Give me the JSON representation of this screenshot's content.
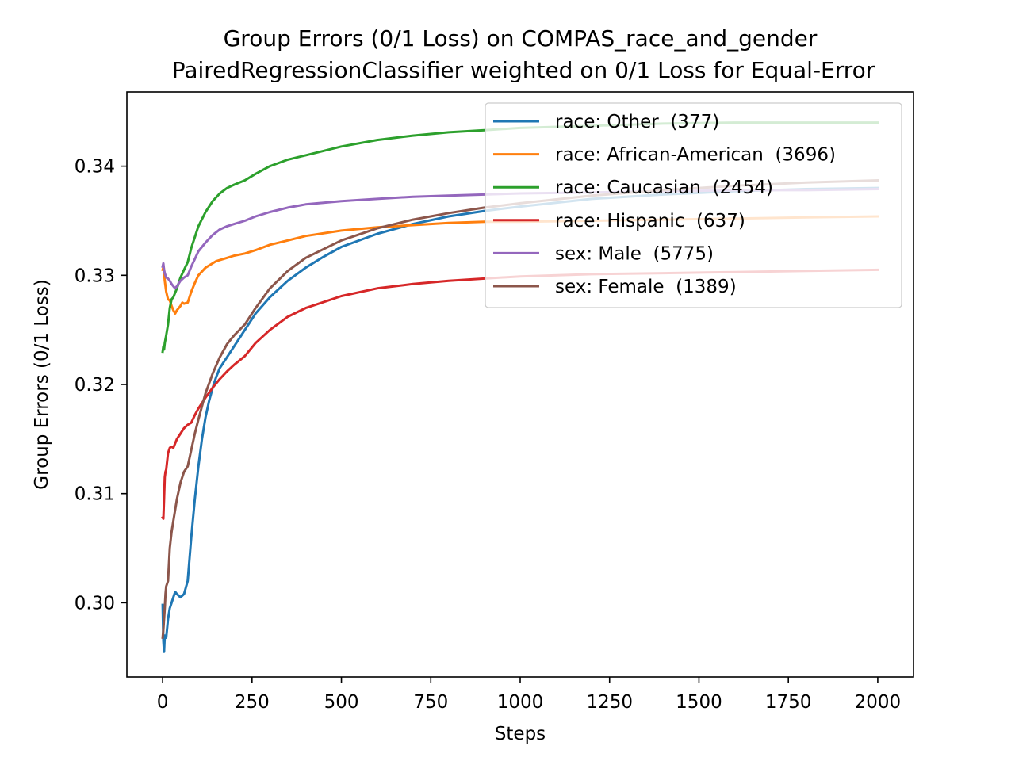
{
  "chart_data": {
    "type": "line",
    "title": "Group Errors (0/1 Loss) on COMPAS_race_and_gender",
    "subtitle": "PairedRegressionClassifier weighted on 0/1 Loss for Equal-Error",
    "xlabel": "Steps",
    "ylabel": "Group Errors (0/1 Loss)",
    "xlim": [
      -100,
      2100
    ],
    "ylim": [
      0.2932,
      0.3468
    ],
    "xticks": [
      0,
      250,
      500,
      750,
      1000,
      1250,
      1500,
      1750,
      2000
    ],
    "xtick_labels": [
      "0",
      "250",
      "500",
      "750",
      "1000",
      "1250",
      "1500",
      "1750",
      "2000"
    ],
    "yticks": [
      0.3,
      0.31,
      0.32,
      0.33,
      0.34
    ],
    "ytick_labels": [
      "0.30",
      "0.31",
      "0.32",
      "0.33",
      "0.34"
    ],
    "grid": false,
    "legend_position": "upper right",
    "series": [
      {
        "name": "race: Other  (377)",
        "color": "#1f77b4",
        "x": [
          0,
          2,
          4,
          6,
          10,
          15,
          20,
          25,
          30,
          35,
          40,
          50,
          60,
          70,
          80,
          90,
          100,
          110,
          120,
          130,
          140,
          150,
          160,
          170,
          180,
          200,
          220,
          240,
          260,
          300,
          350,
          400,
          450,
          500,
          600,
          700,
          800,
          900,
          1000,
          1200,
          1400,
          1600,
          1800,
          2000
        ],
        "y": [
          0.2998,
          0.2965,
          0.2955,
          0.297,
          0.2968,
          0.2985,
          0.2995,
          0.3,
          0.3005,
          0.301,
          0.3008,
          0.3005,
          0.3008,
          0.302,
          0.306,
          0.3095,
          0.3125,
          0.315,
          0.317,
          0.3185,
          0.3197,
          0.3207,
          0.3215,
          0.322,
          0.3225,
          0.3235,
          0.3245,
          0.3255,
          0.3265,
          0.328,
          0.3295,
          0.3307,
          0.3317,
          0.3326,
          0.3338,
          0.3347,
          0.3354,
          0.3359,
          0.3363,
          0.337,
          0.3374,
          0.3377,
          0.3379,
          0.338
        ]
      },
      {
        "name": "race: African-American  (3696)",
        "color": "#ff7f0e",
        "x": [
          0,
          3,
          6,
          10,
          15,
          20,
          25,
          30,
          35,
          40,
          50,
          55,
          60,
          70,
          80,
          90,
          100,
          120,
          150,
          180,
          200,
          230,
          260,
          300,
          350,
          400,
          500,
          600,
          700,
          800,
          900,
          1000,
          1200,
          1400,
          1600,
          1800,
          2000
        ],
        "y": [
          0.3305,
          0.3308,
          0.3295,
          0.3285,
          0.3278,
          0.3277,
          0.3272,
          0.3268,
          0.3265,
          0.3268,
          0.3272,
          0.3275,
          0.3274,
          0.3275,
          0.3285,
          0.3293,
          0.33,
          0.3307,
          0.3313,
          0.3316,
          0.3318,
          0.332,
          0.3323,
          0.3328,
          0.3332,
          0.3336,
          0.3341,
          0.3344,
          0.3346,
          0.3348,
          0.3349,
          0.3349,
          0.335,
          0.3351,
          0.3352,
          0.3353,
          0.3354
        ]
      },
      {
        "name": "race: Caucasian  (2454)",
        "color": "#2ca02c",
        "x": [
          0,
          2,
          4,
          6,
          10,
          15,
          20,
          25,
          30,
          40,
          50,
          60,
          70,
          80,
          90,
          100,
          120,
          140,
          160,
          180,
          200,
          230,
          260,
          300,
          350,
          400,
          500,
          600,
          700,
          800,
          900,
          1000,
          1200,
          1400,
          1600,
          1800,
          2000
        ],
        "y": [
          0.323,
          0.3235,
          0.3232,
          0.3238,
          0.3245,
          0.3255,
          0.327,
          0.3278,
          0.328,
          0.3288,
          0.3298,
          0.3305,
          0.3312,
          0.3325,
          0.3335,
          0.3345,
          0.3358,
          0.3368,
          0.3375,
          0.338,
          0.3383,
          0.3387,
          0.3393,
          0.34,
          0.3406,
          0.341,
          0.3418,
          0.3424,
          0.3428,
          0.3431,
          0.3433,
          0.3435,
          0.3437,
          0.3439,
          0.344,
          0.344,
          0.344
        ]
      },
      {
        "name": "race: Hispanic  (637)",
        "color": "#d62728",
        "x": [
          0,
          2,
          4,
          6,
          8,
          10,
          15,
          20,
          25,
          30,
          40,
          50,
          60,
          70,
          80,
          90,
          100,
          120,
          140,
          160,
          180,
          200,
          230,
          260,
          300,
          350,
          400,
          500,
          600,
          700,
          800,
          900,
          1000,
          1200,
          1400,
          1600,
          1800,
          2000
        ],
        "y": [
          0.3078,
          0.3077,
          0.3095,
          0.3115,
          0.312,
          0.3122,
          0.3137,
          0.3142,
          0.3143,
          0.3142,
          0.315,
          0.3155,
          0.316,
          0.3163,
          0.3165,
          0.3172,
          0.3178,
          0.3188,
          0.3197,
          0.3205,
          0.3212,
          0.3218,
          0.3226,
          0.3238,
          0.325,
          0.3262,
          0.327,
          0.3281,
          0.3288,
          0.3292,
          0.3295,
          0.3297,
          0.3299,
          0.3301,
          0.3302,
          0.3303,
          0.3304,
          0.3305
        ]
      },
      {
        "name": "sex: Male  (5775)",
        "color": "#9467bd",
        "x": [
          0,
          2,
          4,
          6,
          10,
          15,
          20,
          25,
          30,
          35,
          40,
          50,
          60,
          70,
          80,
          90,
          100,
          120,
          140,
          160,
          180,
          200,
          230,
          260,
          300,
          350,
          400,
          500,
          600,
          700,
          800,
          900,
          1000,
          1200,
          1400,
          1600,
          1800,
          2000
        ],
        "y": [
          0.3308,
          0.3311,
          0.3305,
          0.3302,
          0.3298,
          0.3297,
          0.3295,
          0.3292,
          0.329,
          0.3288,
          0.329,
          0.3295,
          0.3298,
          0.33,
          0.3308,
          0.3315,
          0.3322,
          0.333,
          0.3337,
          0.3342,
          0.3345,
          0.3347,
          0.335,
          0.3354,
          0.3358,
          0.3362,
          0.3365,
          0.3368,
          0.337,
          0.3372,
          0.3373,
          0.3374,
          0.3375,
          0.3376,
          0.3377,
          0.3378,
          0.3378,
          0.3379
        ]
      },
      {
        "name": "sex: Female  (1389)",
        "color": "#8c564b",
        "x": [
          0,
          2,
          4,
          6,
          8,
          10,
          15,
          20,
          25,
          30,
          40,
          50,
          60,
          70,
          80,
          90,
          100,
          110,
          120,
          140,
          160,
          180,
          200,
          230,
          260,
          300,
          350,
          400,
          500,
          600,
          700,
          800,
          900,
          1000,
          1200,
          1400,
          1600,
          1800,
          2000
        ],
        "y": [
          0.2968,
          0.2975,
          0.2985,
          0.2995,
          0.3008,
          0.3015,
          0.302,
          0.305,
          0.3065,
          0.3075,
          0.3095,
          0.311,
          0.312,
          0.3125,
          0.314,
          0.3155,
          0.3168,
          0.318,
          0.3192,
          0.321,
          0.3225,
          0.3237,
          0.3245,
          0.3255,
          0.327,
          0.3288,
          0.3304,
          0.3316,
          0.3332,
          0.3343,
          0.3351,
          0.3357,
          0.3362,
          0.3366,
          0.3373,
          0.3378,
          0.3382,
          0.3385,
          0.3387
        ]
      }
    ]
  }
}
